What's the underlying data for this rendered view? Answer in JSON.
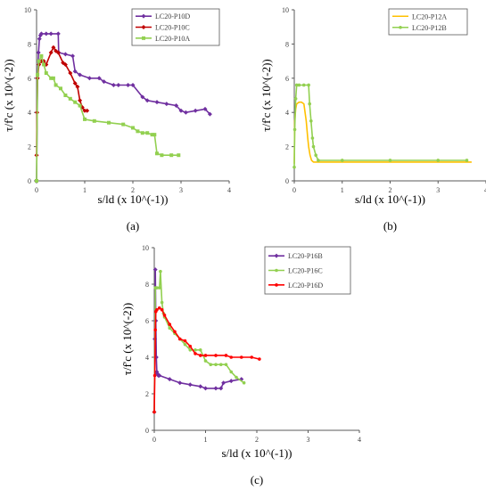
{
  "chart_data": [
    {
      "panel": "(a)",
      "type": "line",
      "xlabel": "s/ld (x 10^(-1))",
      "ylabel": "τ/f'c (x 10^(-2))",
      "xlim": [
        0,
        4
      ],
      "ylim": [
        0,
        10
      ],
      "xticks": [
        "0",
        "1",
        "2",
        "3",
        "4"
      ],
      "yticks": [
        "0",
        "2",
        "4",
        "6",
        "8",
        "10"
      ],
      "legend_position": "top-right",
      "series": [
        {
          "name": "LC20-P10D",
          "color": "#7030a0",
          "marker": "diamond",
          "x": [
            0,
            0.02,
            0.04,
            0.06,
            0.08,
            0.1,
            0.2,
            0.3,
            0.45,
            0.46,
            0.6,
            0.75,
            0.8,
            0.9,
            1.1,
            1.3,
            1.4,
            1.6,
            1.7,
            1.9,
            2.0,
            2.2,
            2.3,
            2.5,
            2.7,
            2.9,
            3.0,
            3.1,
            3.3,
            3.5,
            3.6
          ],
          "y": [
            0,
            6,
            7.5,
            8.3,
            8.5,
            8.6,
            8.6,
            8.6,
            8.6,
            7.5,
            7.4,
            7.3,
            6.4,
            6.2,
            6.0,
            6.0,
            5.8,
            5.6,
            5.6,
            5.6,
            5.6,
            4.9,
            4.7,
            4.6,
            4.5,
            4.4,
            4.1,
            4.0,
            4.1,
            4.2,
            3.9
          ]
        },
        {
          "name": "LC20-P10C",
          "color": "#c00000",
          "marker": "diamond",
          "x": [
            0,
            0.01,
            0.02,
            0.05,
            0.1,
            0.15,
            0.2,
            0.3,
            0.35,
            0.4,
            0.45,
            0.55,
            0.6,
            0.7,
            0.8,
            0.85,
            0.9,
            0.95,
            1.0,
            1.05
          ],
          "y": [
            1.5,
            4.0,
            6.0,
            6.8,
            7.0,
            7.0,
            6.8,
            7.5,
            7.8,
            7.6,
            7.5,
            6.9,
            6.8,
            6.3,
            5.7,
            5.5,
            4.7,
            4.3,
            4.1,
            4.1
          ]
        },
        {
          "name": "LC20-P10A",
          "color": "#92d050",
          "marker": "square",
          "x": [
            0,
            0.02,
            0.05,
            0.1,
            0.15,
            0.2,
            0.3,
            0.35,
            0.4,
            0.5,
            0.6,
            0.7,
            0.8,
            0.9,
            1.0,
            1.2,
            1.5,
            1.8,
            2.0,
            2.1,
            2.2,
            2.3,
            2.4,
            2.45,
            2.5,
            2.6,
            2.8,
            2.95
          ],
          "y": [
            0,
            6.2,
            7.0,
            7.3,
            6.8,
            6.3,
            6.0,
            6.0,
            5.6,
            5.4,
            5.0,
            4.8,
            4.6,
            4.4,
            3.6,
            3.5,
            3.4,
            3.3,
            3.1,
            2.9,
            2.8,
            2.8,
            2.7,
            2.7,
            1.6,
            1.5,
            1.5,
            1.5
          ]
        }
      ]
    },
    {
      "panel": "(b)",
      "type": "line",
      "xlabel": "s/ld (x 10^(-1))",
      "ylabel": "τ/f'c (x 10^(-2))",
      "xlim": [
        0,
        4
      ],
      "ylim": [
        0,
        10
      ],
      "xticks": [
        "0",
        "1",
        "2",
        "3",
        "4"
      ],
      "yticks": [
        "0",
        "2",
        "4",
        "6",
        "8",
        "10"
      ],
      "legend_position": "top-right",
      "series": [
        {
          "name": "LC20-P12A",
          "color": "#ffc000",
          "marker": "none",
          "x": [
            0,
            0.01,
            0.03,
            0.05,
            0.1,
            0.15,
            0.2,
            0.25,
            0.28,
            0.3,
            0.33,
            0.36,
            0.4,
            1.0,
            2.0,
            3.0,
            3.7
          ],
          "y": [
            1.0,
            3.5,
            4.2,
            4.5,
            4.6,
            4.6,
            4.5,
            3.5,
            2.5,
            2.0,
            1.5,
            1.2,
            1.1,
            1.1,
            1.1,
            1.1,
            1.1
          ]
        },
        {
          "name": "LC20-P12B",
          "color": "#92d050",
          "marker": "circle",
          "x": [
            0,
            0.01,
            0.03,
            0.05,
            0.1,
            0.2,
            0.3,
            0.32,
            0.35,
            0.38,
            0.4,
            0.45,
            0.5,
            1.0,
            2.0,
            3.0,
            3.6
          ],
          "y": [
            0.8,
            3.0,
            4.8,
            5.6,
            5.6,
            5.6,
            5.6,
            4.5,
            3.5,
            2.5,
            2.0,
            1.5,
            1.2,
            1.2,
            1.2,
            1.2,
            1.2
          ]
        }
      ]
    },
    {
      "panel": "(c)",
      "type": "line",
      "xlabel": "s/ld (x 10^(-1))",
      "ylabel": "τ/f'c (x 10^(-2))",
      "xlim": [
        0,
        4
      ],
      "ylim": [
        0,
        10
      ],
      "xticks": [
        "0",
        "1",
        "2",
        "3",
        "4"
      ],
      "yticks": [
        "0",
        "2",
        "4",
        "6",
        "8",
        "10"
      ],
      "legend_position": "top-right",
      "series": [
        {
          "name": "LC20-P16B",
          "color": "#7030a0",
          "marker": "diamond",
          "x": [
            0,
            0.01,
            0.02,
            0.03,
            0.04,
            0.05,
            0.06,
            0.08,
            0.1,
            0.3,
            0.5,
            0.7,
            0.9,
            1.0,
            1.2,
            1.3,
            1.35,
            1.5,
            1.7
          ],
          "y": [
            1.0,
            5.0,
            8.8,
            6.0,
            4.0,
            3.2,
            3.1,
            3.0,
            3.0,
            2.8,
            2.6,
            2.5,
            2.4,
            2.3,
            2.3,
            2.3,
            2.6,
            2.7,
            2.8
          ]
        },
        {
          "name": "LC20-P16C",
          "color": "#92d050",
          "marker": "circle",
          "x": [
            0,
            0.02,
            0.05,
            0.1,
            0.12,
            0.15,
            0.18,
            0.2,
            0.3,
            0.4,
            0.5,
            0.6,
            0.7,
            0.8,
            0.9,
            1.0,
            1.1,
            1.2,
            1.3,
            1.4,
            1.5,
            1.6,
            1.75
          ],
          "y": [
            1.0,
            7.8,
            7.8,
            7.8,
            8.7,
            7.0,
            6.4,
            6.2,
            5.6,
            5.3,
            5.0,
            4.7,
            4.4,
            4.4,
            4.4,
            3.8,
            3.6,
            3.6,
            3.6,
            3.6,
            3.2,
            2.9,
            2.6
          ]
        },
        {
          "name": "LC20-P16D",
          "color": "#ff0000",
          "marker": "circle",
          "x": [
            0,
            0.01,
            0.02,
            0.03,
            0.05,
            0.1,
            0.15,
            0.2,
            0.3,
            0.4,
            0.5,
            0.6,
            0.7,
            0.8,
            0.9,
            1.0,
            1.2,
            1.4,
            1.5,
            1.7,
            1.9,
            2.05
          ],
          "y": [
            1.0,
            3.0,
            5.5,
            6.5,
            6.6,
            6.7,
            6.6,
            6.3,
            5.8,
            5.4,
            5.0,
            4.9,
            4.6,
            4.2,
            4.1,
            4.1,
            4.1,
            4.1,
            4.0,
            4.0,
            4.0,
            3.9
          ]
        }
      ]
    }
  ]
}
